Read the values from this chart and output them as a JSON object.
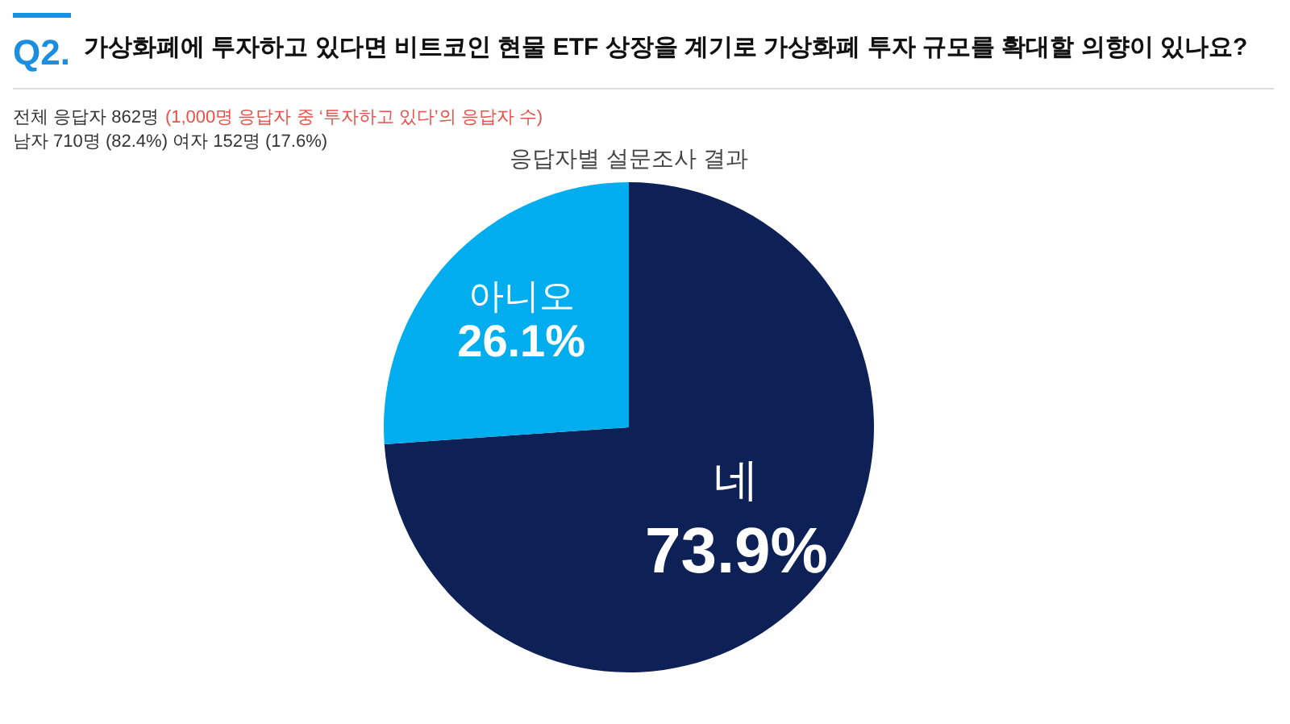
{
  "chart_data": {
    "type": "pie",
    "title": "가상화폐에 투자하고 있다면 비트코인 현물 ETF 상장을 계기로 가상화폐 투자 규모를 확대할 의향이 있나요?",
    "subtitle": "응답자별 설문조사 결과",
    "annotations": [
      "Q2.",
      "전체 응답자 862명",
      "(1,000명 응답자 중 ‘투자하고 있다’의 응답자 수)",
      "남자 710명 (82.4%) 여자 152명 (17.6%)"
    ],
    "categories": [
      "네",
      "아니오"
    ],
    "values": [
      73.9,
      26.1
    ],
    "colors": [
      "#0d2157",
      "#00aeef"
    ],
    "value_labels": [
      "73.9%",
      "26.1%"
    ]
  }
}
